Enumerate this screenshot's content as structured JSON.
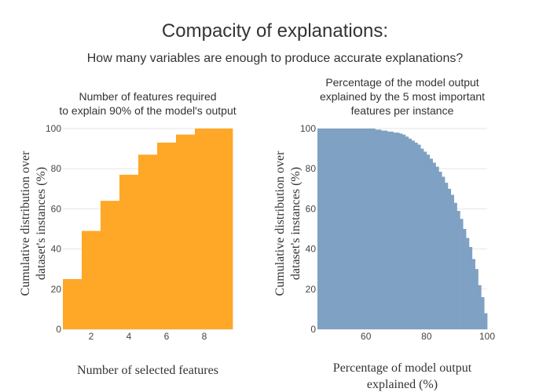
{
  "title": "Compacity of explanations:",
  "subtitle": "How many variables are enough to produce accurate explanations?",
  "chart_data": [
    {
      "type": "bar",
      "title_lines": [
        "Number of features required",
        "to explain 90% of the model's output"
      ],
      "xlabel": "Number of selected features",
      "ylabel_lines": [
        "Cumulative distribution over",
        "dataset's instances (%)"
      ],
      "color": "#FFA726",
      "x_ticks": [
        2,
        4,
        6,
        8
      ],
      "y_ticks": [
        0,
        20,
        40,
        60,
        80,
        100
      ],
      "xlim": [
        0.5,
        9.5
      ],
      "ylim": [
        0,
        100
      ],
      "categories": [
        1,
        2,
        3,
        4,
        5,
        6,
        7,
        8,
        9
      ],
      "values": [
        25,
        49,
        64,
        77,
        87,
        93,
        97,
        100,
        100
      ]
    },
    {
      "type": "bar",
      "title_lines": [
        "Percentage of the model output",
        "explained by the 5 most important",
        "features per instance"
      ],
      "xlabel_lines": [
        "Percentage of model output",
        "explained (%)"
      ],
      "ylabel_lines": [
        "Cumulative distribution over",
        "dataset's instances (%)"
      ],
      "color": "#7FA1C3",
      "x_ticks": [
        60,
        80,
        100
      ],
      "y_ticks": [
        0,
        20,
        40,
        60,
        80,
        100
      ],
      "xlim": [
        44,
        100
      ],
      "ylim": [
        0,
        100
      ],
      "x": [
        44,
        63,
        65,
        67,
        69,
        71,
        72,
        73,
        74,
        75,
        76,
        77,
        78,
        79,
        80,
        81,
        82,
        83,
        84,
        85,
        86,
        87,
        88,
        89,
        90,
        91,
        92,
        93,
        94,
        95,
        96,
        97,
        98,
        99
      ],
      "values": [
        100,
        99.5,
        99,
        98.5,
        98,
        97.5,
        97,
        96,
        95,
        94,
        93,
        92,
        90,
        88.5,
        87,
        85,
        83,
        81,
        78.5,
        76,
        73,
        70,
        67,
        63,
        59,
        55,
        50,
        45.5,
        41,
        35,
        30,
        22,
        16,
        8
      ]
    }
  ]
}
